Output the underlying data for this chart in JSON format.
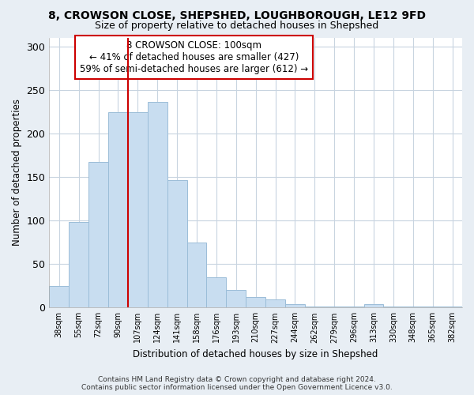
{
  "title": "8, CROWSON CLOSE, SHEPSHED, LOUGHBOROUGH, LE12 9FD",
  "subtitle": "Size of property relative to detached houses in Shepshed",
  "xlabel": "Distribution of detached houses by size in Shepshed",
  "ylabel": "Number of detached properties",
  "bar_color": "#c8ddf0",
  "bar_edge_color": "#9bbdd8",
  "marker_line_color": "#cc0000",
  "bin_labels": [
    "38sqm",
    "55sqm",
    "72sqm",
    "90sqm",
    "107sqm",
    "124sqm",
    "141sqm",
    "158sqm",
    "176sqm",
    "193sqm",
    "210sqm",
    "227sqm",
    "244sqm",
    "262sqm",
    "279sqm",
    "296sqm",
    "313sqm",
    "330sqm",
    "348sqm",
    "365sqm",
    "382sqm"
  ],
  "bar_heights": [
    25,
    98,
    167,
    224,
    224,
    236,
    146,
    75,
    35,
    20,
    12,
    9,
    4,
    1,
    1,
    1,
    4,
    1,
    1,
    1,
    1
  ],
  "ylim": [
    0,
    310
  ],
  "yticks": [
    0,
    50,
    100,
    150,
    200,
    250,
    300
  ],
  "annotation_title": "8 CROWSON CLOSE: 100sqm",
  "annotation_line1": "← 41% of detached houses are smaller (427)",
  "annotation_line2": "59% of semi-detached houses are larger (612) →",
  "annotation_box_color": "#ffffff",
  "annotation_box_edge": "#cc0000",
  "footer_line1": "Contains HM Land Registry data © Crown copyright and database right 2024.",
  "footer_line2": "Contains public sector information licensed under the Open Government Licence v3.0.",
  "bg_color": "#e8eef4",
  "plot_bg_color": "#ffffff",
  "grid_color": "#c8d4e0"
}
